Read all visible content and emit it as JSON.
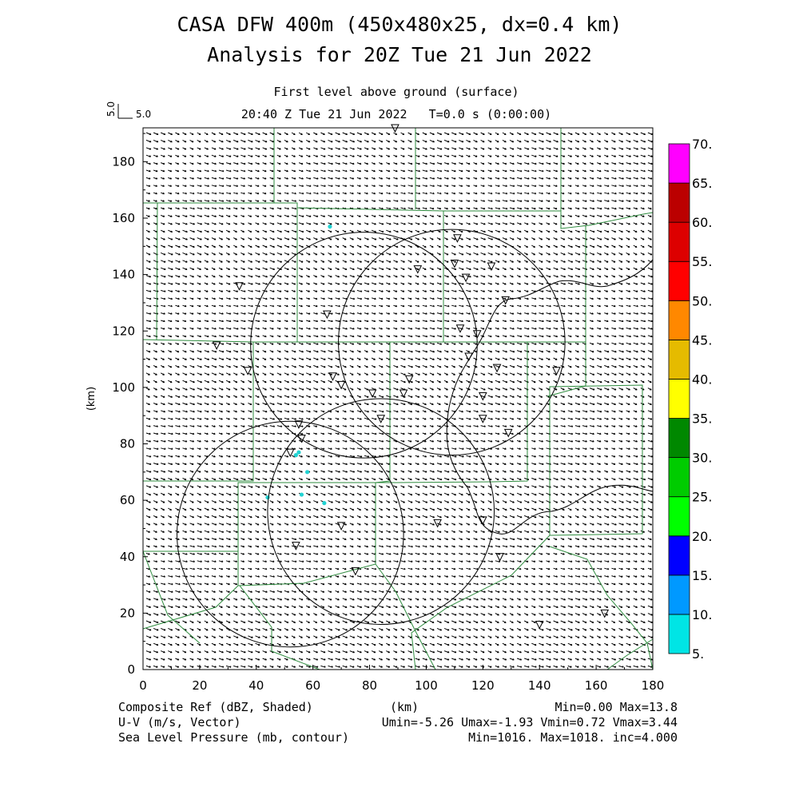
{
  "title": {
    "line1": "CASA DFW 400m (450x480x25, dx=0.4 km)",
    "line2": "Analysis for 20Z Tue 21 Jun 2022"
  },
  "subtitle": {
    "level": "First level above ground (surface)",
    "time": "20:40 Z Tue 21 Jun 2022   T=0.0 s (0:00:00)"
  },
  "vector_key": {
    "vertical_label": "5.0",
    "horizontal_label": "5.0"
  },
  "axes": {
    "x_label": "(km)",
    "y_label": "(km)",
    "x_ticks": [
      "0",
      "20",
      "40",
      "60",
      "80",
      "100",
      "120",
      "140",
      "160",
      "180"
    ],
    "y_ticks": [
      "0",
      "20",
      "40",
      "60",
      "80",
      "100",
      "120",
      "140",
      "160",
      "180"
    ],
    "x_range_km": [
      0,
      180
    ],
    "y_range_km": [
      0,
      192
    ]
  },
  "colorbar": {
    "labels": [
      "5.",
      "10.",
      "15.",
      "20.",
      "25.",
      "30.",
      "35.",
      "40.",
      "45.",
      "50.",
      "55.",
      "60.",
      "65.",
      "70."
    ],
    "colors": [
      "#00e5e5",
      "#0099ff",
      "#0000ff",
      "#00ff00",
      "#00cc00",
      "#008800",
      "#ffff00",
      "#e5bb00",
      "#ff8800",
      "#ff0000",
      "#dd0000",
      "#bb0000",
      "#ff00ff"
    ]
  },
  "footer": {
    "left1": "Composite Ref (dBZ, Shaded)",
    "left2": "U-V (m/s, Vector)",
    "left3": "Sea Level Pressure (mb, contour)",
    "center": "(km)",
    "right1": "Min=0.00 Max=13.8",
    "right2": "Umin=-5.26 Umax=-1.93 Vmin=0.72 Vmax=3.44",
    "right3": "Min=1016. Max=1018. inc=4.000"
  },
  "map_data": {
    "colors": {
      "county_lines": "#2e8b3e",
      "frame": "#000000",
      "reflectivity": "#22d3d3"
    },
    "radar_rings": [
      {
        "center_km": [
          78,
          115
        ],
        "radius_km": 40
      },
      {
        "center_km": [
          109,
          116
        ],
        "radius_km": 40
      },
      {
        "center_km": [
          52,
          48
        ],
        "radius_km": 40
      },
      {
        "center_km": [
          84,
          56
        ],
        "radius_km": 40
      }
    ],
    "reflectivity_points_km": [
      [
        66,
        157
      ],
      [
        55,
        77
      ],
      [
        54,
        76
      ],
      [
        58,
        70
      ],
      [
        44,
        61
      ],
      [
        56,
        62
      ],
      [
        64,
        59
      ]
    ],
    "station_markers_km": [
      [
        89,
        192
      ],
      [
        111,
        153
      ],
      [
        110,
        144
      ],
      [
        123,
        143
      ],
      [
        97,
        142
      ],
      [
        114,
        139
      ],
      [
        34,
        136
      ],
      [
        65,
        126
      ],
      [
        128,
        131
      ],
      [
        112,
        121
      ],
      [
        118,
        119
      ],
      [
        26,
        115
      ],
      [
        115,
        111
      ],
      [
        125,
        107
      ],
      [
        146,
        106
      ],
      [
        37,
        106
      ],
      [
        67,
        104
      ],
      [
        70,
        101
      ],
      [
        94,
        103
      ],
      [
        92,
        98
      ],
      [
        81,
        98
      ],
      [
        120,
        97
      ],
      [
        84,
        89
      ],
      [
        120,
        89
      ],
      [
        129,
        84
      ],
      [
        55,
        87
      ],
      [
        56,
        82
      ],
      [
        52,
        77
      ],
      [
        104,
        52
      ],
      [
        120,
        53
      ],
      [
        70,
        51
      ],
      [
        54,
        44
      ],
      [
        126,
        40
      ],
      [
        75,
        35
      ],
      [
        140,
        16
      ],
      [
        163,
        20
      ]
    ]
  }
}
